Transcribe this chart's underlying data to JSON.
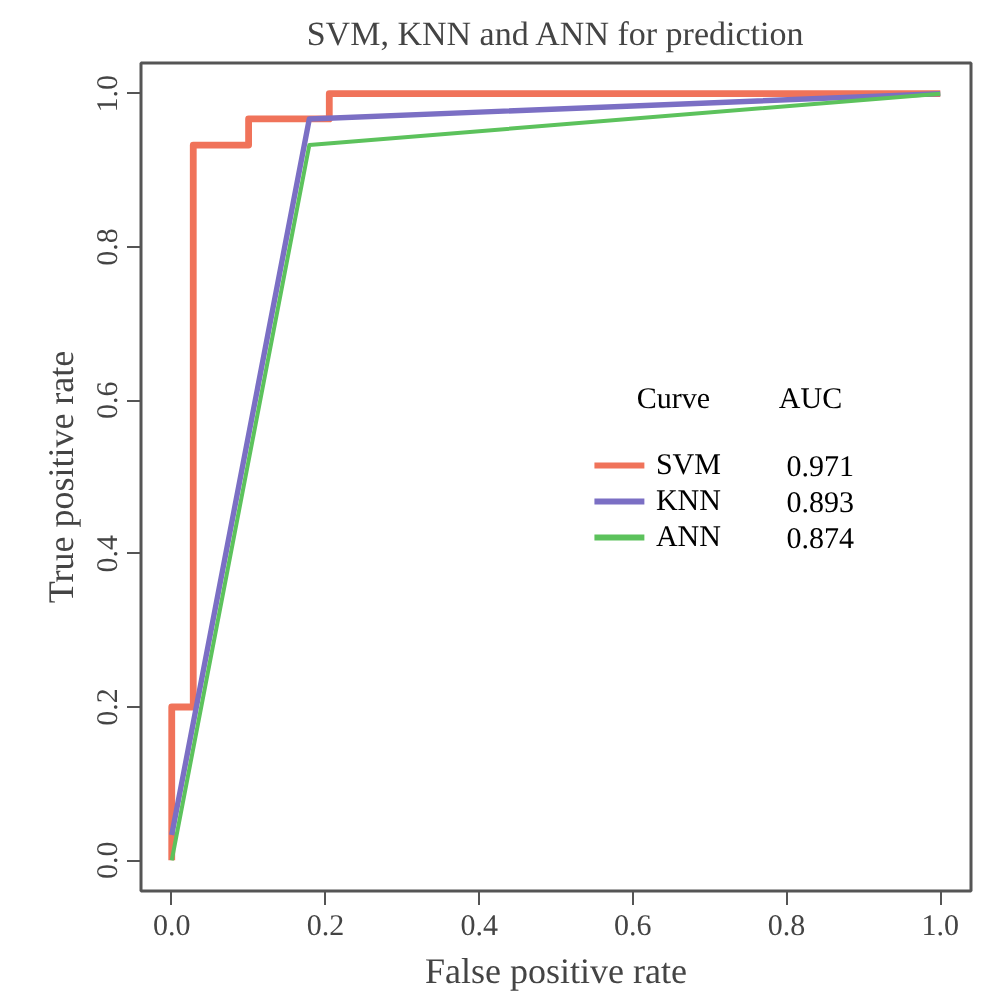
{
  "chart_data": {
    "type": "line",
    "title": "SVM, KNN and ANN for prediction",
    "xlabel": "False positive rate",
    "ylabel": "True positive rate",
    "xlim": [
      -0.04,
      1.04
    ],
    "ylim": [
      -0.04,
      1.04
    ],
    "xticks": [
      {
        "value": 0,
        "label": "0.0"
      },
      0.2,
      0.4,
      0.6,
      0.8,
      {
        "value": 1,
        "label": "1.0"
      }
    ],
    "yticks": [
      {
        "value": 0,
        "label": "0.0"
      },
      0.2,
      0.4,
      0.6,
      0.8,
      {
        "value": 1,
        "label": "1.0"
      }
    ],
    "grid": false,
    "legend": "center",
    "legend_title": "Curve",
    "line_style": "solid",
    "marker": "none",
    "annotations": [
      "AUC",
      "0.971",
      "0.893",
      "0.874"
    ],
    "series": [
      {
        "name": "SVM",
        "color": "#f0735a",
        "x": [
          0,
          0,
          0.028,
          0.028,
          0.1,
          0.1,
          0.205,
          0.205,
          1
        ],
        "values": [
          0,
          0.2,
          0.2,
          0.933,
          0.933,
          0.967,
          0.967,
          1,
          1
        ]
      },
      {
        "name": "KNN",
        "color": "#7b6fc4",
        "x": [
          0,
          0.179,
          1
        ],
        "values": [
          0.033,
          0.967,
          1
        ]
      },
      {
        "name": "ANN",
        "color": "#5cc25c",
        "x": [
          0,
          0.179,
          1
        ],
        "values": [
          0,
          0.933,
          1
        ]
      }
    ]
  }
}
